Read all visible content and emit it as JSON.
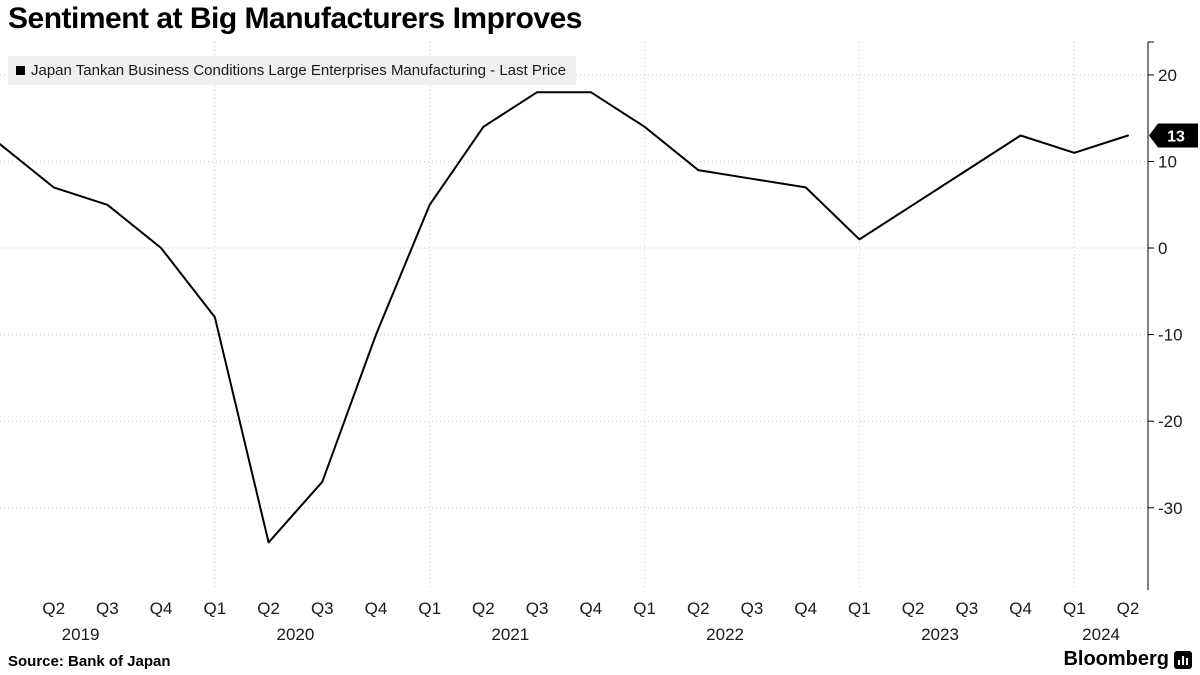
{
  "title": "Sentiment at Big Manufacturers Improves",
  "legend": {
    "label": "Japan Tankan Business Conditions Large Enterprises Manufacturing - Last Price"
  },
  "footer": {
    "source": "Source: Bank of Japan",
    "brand": "Bloomberg"
  },
  "chart_data": {
    "type": "line",
    "title": "Sentiment at Big Manufacturers Improves",
    "series": [
      {
        "name": "Japan Tankan Business Conditions Large Enterprises Manufacturing - Last Price",
        "color": "#000000",
        "values": [
          12,
          7,
          5,
          0,
          -8,
          -34,
          -27,
          -10,
          5,
          14,
          18,
          18,
          14,
          9,
          8,
          7,
          1,
          5,
          9,
          13,
          11,
          13
        ]
      }
    ],
    "categories": [
      "Q1 2019",
      "Q2 2019",
      "Q3 2019",
      "Q4 2019",
      "Q1 2020",
      "Q2 2020",
      "Q3 2020",
      "Q4 2020",
      "Q1 2021",
      "Q2 2021",
      "Q3 2021",
      "Q4 2021",
      "Q1 2022",
      "Q2 2022",
      "Q3 2022",
      "Q4 2022",
      "Q1 2023",
      "Q2 2023",
      "Q3 2023",
      "Q4 2023",
      "Q1 2024",
      "Q2 2024"
    ],
    "x_tick_labels": [
      "",
      "Q2",
      "Q3",
      "Q4",
      "Q1",
      "Q2",
      "Q3",
      "Q4",
      "Q1",
      "Q2",
      "Q3",
      "Q4",
      "Q1",
      "Q2",
      "Q3",
      "Q4",
      "Q1",
      "Q2",
      "Q3",
      "Q4",
      "Q1",
      "Q2"
    ],
    "year_labels": [
      "2019",
      "2020",
      "2021",
      "2022",
      "2023",
      "2024"
    ],
    "y_ticks": [
      20,
      10,
      0,
      -10,
      -20,
      -30
    ],
    "ylim": [
      -39.5,
      23.8
    ],
    "y_axis_side": "right",
    "grid": {
      "horizontal": true,
      "vertical_at_year_start": true
    },
    "legend_position": "top-left",
    "last_price": {
      "value": 13,
      "label": "13"
    }
  }
}
